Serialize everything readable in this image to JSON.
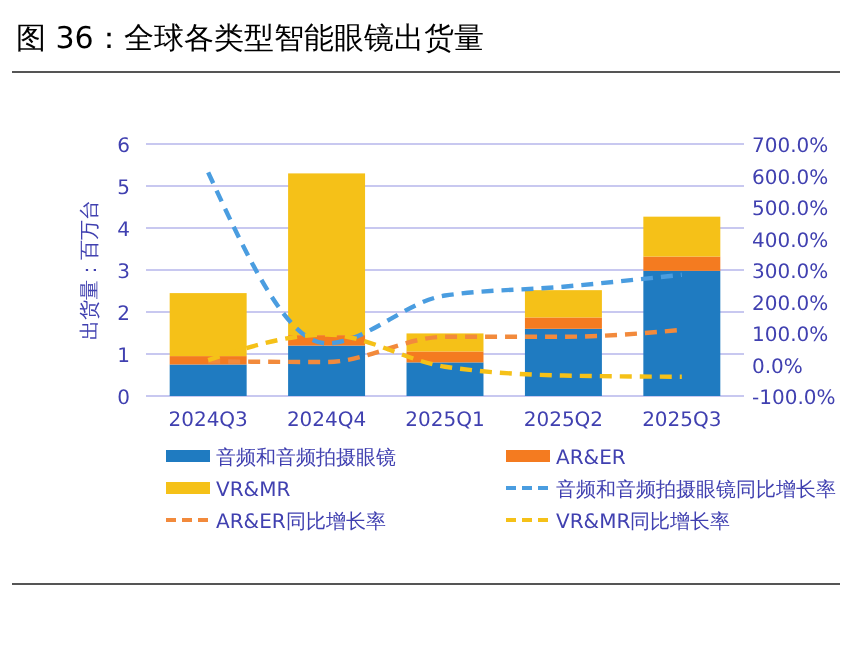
{
  "chart_data": {
    "type": "bar",
    "title": "图 36：全球各类型智能眼镜出货量",
    "ylabel": "出货量：百万台",
    "stacked": true,
    "categories": [
      "2024Q3",
      "2024Q4",
      "2025Q1",
      "2025Q2",
      "2025Q3"
    ],
    "series": [
      {
        "name": "音频和音频拍摄眼镜",
        "color": "#1f7bc1",
        "values": [
          0.75,
          1.2,
          0.8,
          1.6,
          2.98
        ]
      },
      {
        "name": "AR&ER",
        "color": "#f47b20",
        "values": [
          0.2,
          0.25,
          0.26,
          0.27,
          0.34
        ]
      },
      {
        "name": "VR&MR",
        "color": "#f5c118",
        "values": [
          1.5,
          3.85,
          0.43,
          0.65,
          0.95
        ]
      },
      {
        "name": "音频和音频拍摄眼镜同比增长率",
        "type": "line",
        "axis": "y2",
        "color": "#4a9de0",
        "line_style": "dashed",
        "values": [
          610,
          67,
          219,
          247,
          285
        ]
      },
      {
        "name": "AR&ER同比增长率",
        "type": "line",
        "axis": "y2",
        "color": "#f28a3c",
        "line_style": "dashed",
        "values": [
          10,
          8,
          88,
          88,
          110
        ]
      },
      {
        "name": "VR&MR同比增长率",
        "type": "line",
        "axis": "y2",
        "color": "#f5c118",
        "line_style": "dashed",
        "values": [
          14,
          95,
          -7,
          -35,
          -39
        ]
      }
    ],
    "ylim": [
      0,
      6
    ],
    "yticks": [
      0,
      1,
      2,
      3,
      4,
      5,
      6
    ],
    "y2lim": [
      -100,
      700
    ],
    "y2ticks": [
      {
        "value": -100,
        "label": "-100.0%"
      },
      {
        "value": 0,
        "label": "0.0%"
      },
      {
        "value": 100,
        "label": "100.0%"
      },
      {
        "value": 200,
        "label": "200.0%"
      },
      {
        "value": 300,
        "label": "300.0%"
      },
      {
        "value": 400,
        "label": "400.0%"
      },
      {
        "value": 500,
        "label": "500.0%"
      },
      {
        "value": 600,
        "label": "600.0%"
      },
      {
        "value": 700,
        "label": "700.0%"
      }
    ],
    "grid": "y",
    "legend": "bottom",
    "marker": "none"
  }
}
